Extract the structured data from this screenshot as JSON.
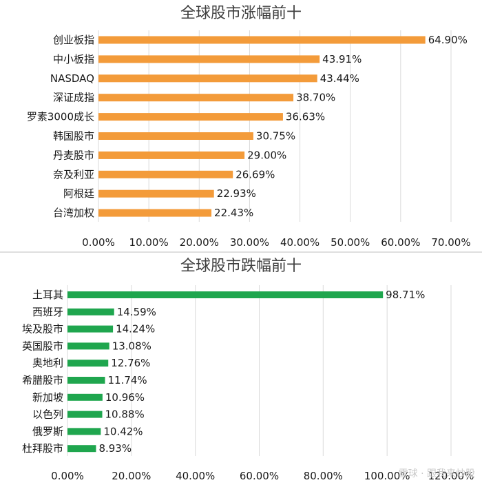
{
  "chart_data": [
    {
      "type": "bar",
      "orientation": "horizontal",
      "title": "全球股市涨幅前十",
      "categories": [
        "创业板指",
        "中小板指",
        "NASDAQ",
        "深证成指",
        "罗素3000成长",
        "韩国股市",
        "丹麦股市",
        "奈及利亚",
        "阿根廷",
        "台湾加权"
      ],
      "values": [
        64.9,
        43.91,
        43.44,
        38.7,
        36.63,
        30.75,
        29.0,
        26.69,
        22.93,
        22.43
      ],
      "labels": [
        "64.90%",
        "43.91%",
        "43.44%",
        "38.70%",
        "36.63%",
        "30.75%",
        "29.00%",
        "26.69%",
        "22.93%",
        "22.43%"
      ],
      "xticks": [
        "0.00%",
        "10.00%",
        "20.00%",
        "30.00%",
        "40.00%",
        "50.00%",
        "60.00%",
        "70.00%"
      ],
      "xlim": [
        0,
        70
      ],
      "grid": true,
      "color": "#F39B3A"
    },
    {
      "type": "bar",
      "orientation": "horizontal",
      "title": "全球股市跌幅前十",
      "categories": [
        "土耳其",
        "西班牙",
        "埃及股市",
        "英国股市",
        "奥地利",
        "希腊股市",
        "新加坡",
        "以色列",
        "俄罗斯",
        "杜拜股市"
      ],
      "values": [
        98.71,
        14.59,
        14.24,
        13.08,
        12.76,
        11.74,
        10.96,
        10.88,
        10.42,
        8.93
      ],
      "labels": [
        "98.71%",
        "14.59%",
        "14.24%",
        "13.08%",
        "12.76%",
        "11.74%",
        "10.96%",
        "10.88%",
        "10.42%",
        "8.93%"
      ],
      "xticks": [
        "0.00%",
        "20.00%",
        "40.00%",
        "60.00%",
        "80.00%",
        "100.00%",
        "120.00%"
      ],
      "xlim": [
        0,
        120
      ],
      "grid": true,
      "color": "#1FA64E"
    }
  ],
  "watermark": "雪球 · 跟我来炒股"
}
